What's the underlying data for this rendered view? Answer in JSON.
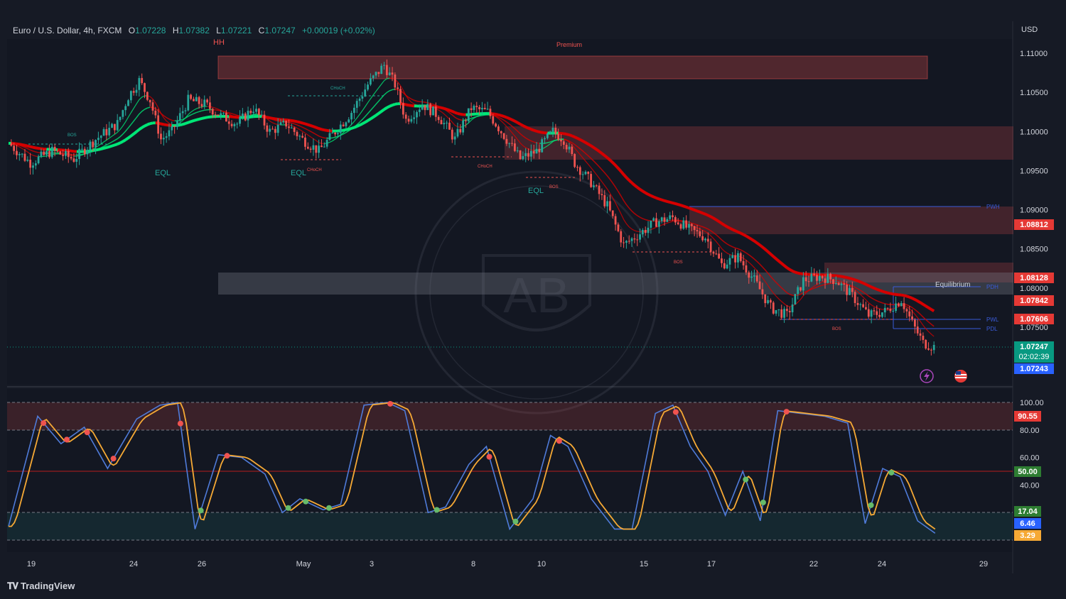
{
  "header": {
    "symbol": "Euro / U.S. Dollar, 4h, FXCM",
    "open_label": "O",
    "open": "1.07228",
    "high_label": "H",
    "high": "1.07382",
    "low_label": "L",
    "low": "1.07221",
    "close_label": "C",
    "close": "1.07247",
    "change": "+0.00019 (+0.02%)"
  },
  "currency": "USD",
  "branding": "TradingView",
  "colors": {
    "up": "#26a69a",
    "down": "#ef5350",
    "ema_green": "#00e676",
    "ema_red": "#d50000",
    "stoch_k": "#4f7bd9",
    "stoch_d": "#f6a935"
  },
  "chart_data": [
    {
      "type": "candlestick",
      "title": "Euro / U.S. Dollar, 4h, FXCM",
      "y_range": [
        1.069,
        1.113
      ],
      "y_ticks": [
        "1.11000",
        "1.10500",
        "1.10000",
        "1.09500",
        "1.09000",
        "1.08500",
        "1.08000",
        "1.07500"
      ],
      "x_ticks": [
        "19",
        "24",
        "26",
        "May",
        "3",
        "8",
        "10",
        "15",
        "17",
        "22",
        "24",
        "29"
      ],
      "price_badges": [
        {
          "value": "1.08812",
          "color": "#e53935"
        },
        {
          "value": "1.08128",
          "color": "#e53935"
        },
        {
          "value": "1.07842",
          "color": "#e53935"
        },
        {
          "value": "1.07606",
          "color": "#e53935"
        },
        {
          "value": "1.07247",
          "color": "#089981",
          "sub": "02:02:39"
        },
        {
          "value": "1.07243",
          "color": "#2962ff"
        }
      ],
      "zone_labels": [
        "Premium",
        "Equilibrium"
      ],
      "structure_labels": [
        "HH",
        "EQL",
        "EQL",
        "EQL",
        "BOS",
        "BOS",
        "BOS",
        "BOS",
        "CHoCH",
        "CHoCH",
        "CHoCH"
      ],
      "level_labels": [
        "PWH",
        "PDH",
        "PWL",
        "PDL"
      ],
      "closes_anchors": [
        [
          0,
          1.0985
        ],
        [
          8,
          1.096
        ],
        [
          16,
          1.0975
        ],
        [
          24,
          1.0965
        ],
        [
          32,
          1.099
        ],
        [
          40,
          1.101
        ],
        [
          44,
          1.1045
        ],
        [
          48,
          1.1065
        ],
        [
          52,
          1.104
        ],
        [
          56,
          1.099
        ],
        [
          60,
          1.1
        ],
        [
          66,
          1.104
        ],
        [
          72,
          1.1035
        ],
        [
          78,
          1.102
        ],
        [
          84,
          1.101
        ],
        [
          90,
          1.103
        ],
        [
          96,
          1.1
        ],
        [
          102,
          1.101
        ],
        [
          108,
          1.099
        ],
        [
          114,
          1.0975
        ],
        [
          120,
          1.1
        ],
        [
          126,
          1.1025
        ],
        [
          132,
          1.106
        ],
        [
          138,
          1.1085
        ],
        [
          142,
          1.106
        ],
        [
          146,
          1.1015
        ],
        [
          152,
          1.1035
        ],
        [
          158,
          1.102
        ],
        [
          164,
          1.099
        ],
        [
          170,
          1.103
        ],
        [
          176,
          1.1025
        ],
        [
          182,
          1.0995
        ],
        [
          188,
          1.0965
        ],
        [
          194,
          1.0975
        ],
        [
          200,
          1.1
        ],
        [
          204,
          1.099
        ],
        [
          208,
          1.096
        ],
        [
          214,
          1.0935
        ],
        [
          220,
          1.0905
        ],
        [
          226,
          1.0855
        ],
        [
          232,
          1.087
        ],
        [
          238,
          1.0885
        ],
        [
          244,
          1.089
        ],
        [
          250,
          1.0875
        ],
        [
          256,
          1.0865
        ],
        [
          262,
          1.083
        ],
        [
          268,
          1.084
        ],
        [
          274,
          1.081
        ],
        [
          280,
          1.0775
        ],
        [
          286,
          1.0765
        ],
        [
          292,
          1.081
        ],
        [
          298,
          1.0815
        ],
        [
          304,
          1.081
        ],
        [
          310,
          1.079
        ],
        [
          316,
          1.0765
        ],
        [
          322,
          1.077
        ],
        [
          328,
          1.0785
        ],
        [
          332,
          1.0755
        ],
        [
          336,
          1.073
        ],
        [
          340,
          1.0725
        ]
      ]
    },
    {
      "type": "line",
      "title": "Stochastic",
      "y_range": [
        0,
        100
      ],
      "y_ticks": [
        "100.00",
        "80.00",
        "60.00",
        "40.00"
      ],
      "level_badges": [
        {
          "value": "90.55",
          "color": "#e53935"
        },
        {
          "value": "50.00",
          "color": "#2e7d32"
        },
        {
          "value": "17.04",
          "color": "#2e7d32"
        },
        {
          "value": "6.46",
          "color": "#2962ff"
        },
        {
          "value": "3.29",
          "color": "#f6a935"
        }
      ],
      "k_anchors": [
        [
          0,
          10
        ],
        [
          10,
          90
        ],
        [
          18,
          70
        ],
        [
          26,
          82
        ],
        [
          34,
          52
        ],
        [
          44,
          88
        ],
        [
          52,
          98
        ],
        [
          58,
          100
        ],
        [
          64,
          8
        ],
        [
          72,
          62
        ],
        [
          80,
          60
        ],
        [
          88,
          48
        ],
        [
          94,
          20
        ],
        [
          100,
          30
        ],
        [
          108,
          22
        ],
        [
          114,
          26
        ],
        [
          122,
          98
        ],
        [
          130,
          100
        ],
        [
          136,
          94
        ],
        [
          144,
          20
        ],
        [
          150,
          24
        ],
        [
          158,
          55
        ],
        [
          164,
          68
        ],
        [
          172,
          8
        ],
        [
          180,
          30
        ],
        [
          186,
          76
        ],
        [
          192,
          68
        ],
        [
          200,
          30
        ],
        [
          208,
          8
        ],
        [
          214,
          8
        ],
        [
          222,
          92
        ],
        [
          228,
          98
        ],
        [
          234,
          68
        ],
        [
          240,
          50
        ],
        [
          246,
          18
        ],
        [
          252,
          50
        ],
        [
          258,
          14
        ],
        [
          264,
          94
        ],
        [
          272,
          92
        ],
        [
          280,
          90
        ],
        [
          288,
          85
        ],
        [
          294,
          12
        ],
        [
          300,
          52
        ],
        [
          306,
          46
        ],
        [
          312,
          14
        ],
        [
          318,
          5
        ]
      ]
    }
  ]
}
